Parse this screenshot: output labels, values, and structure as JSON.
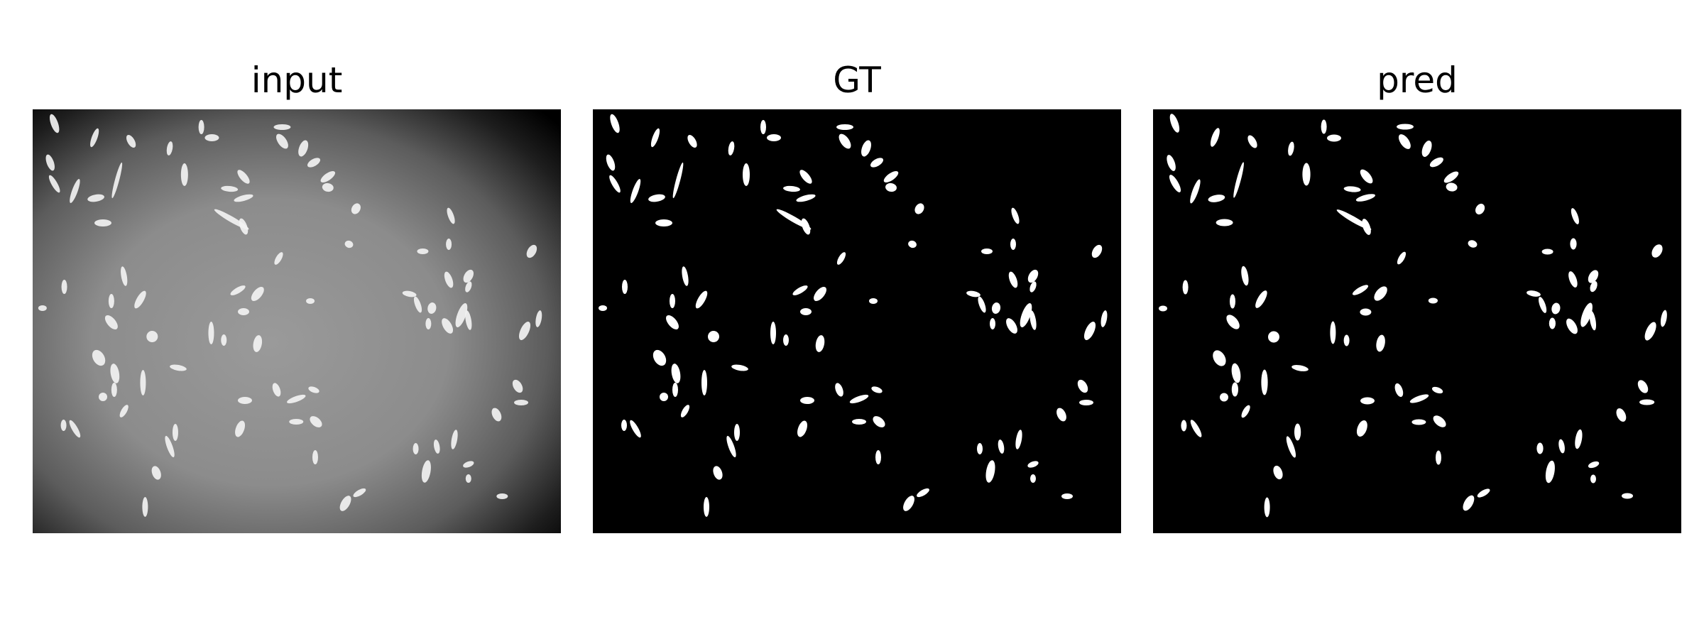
{
  "figure": {
    "panels": [
      {
        "title": "input",
        "kind": "microscopy-grayscale"
      },
      {
        "title": "GT",
        "kind": "binary-mask"
      },
      {
        "title": "pred",
        "kind": "binary-mask"
      }
    ]
  }
}
